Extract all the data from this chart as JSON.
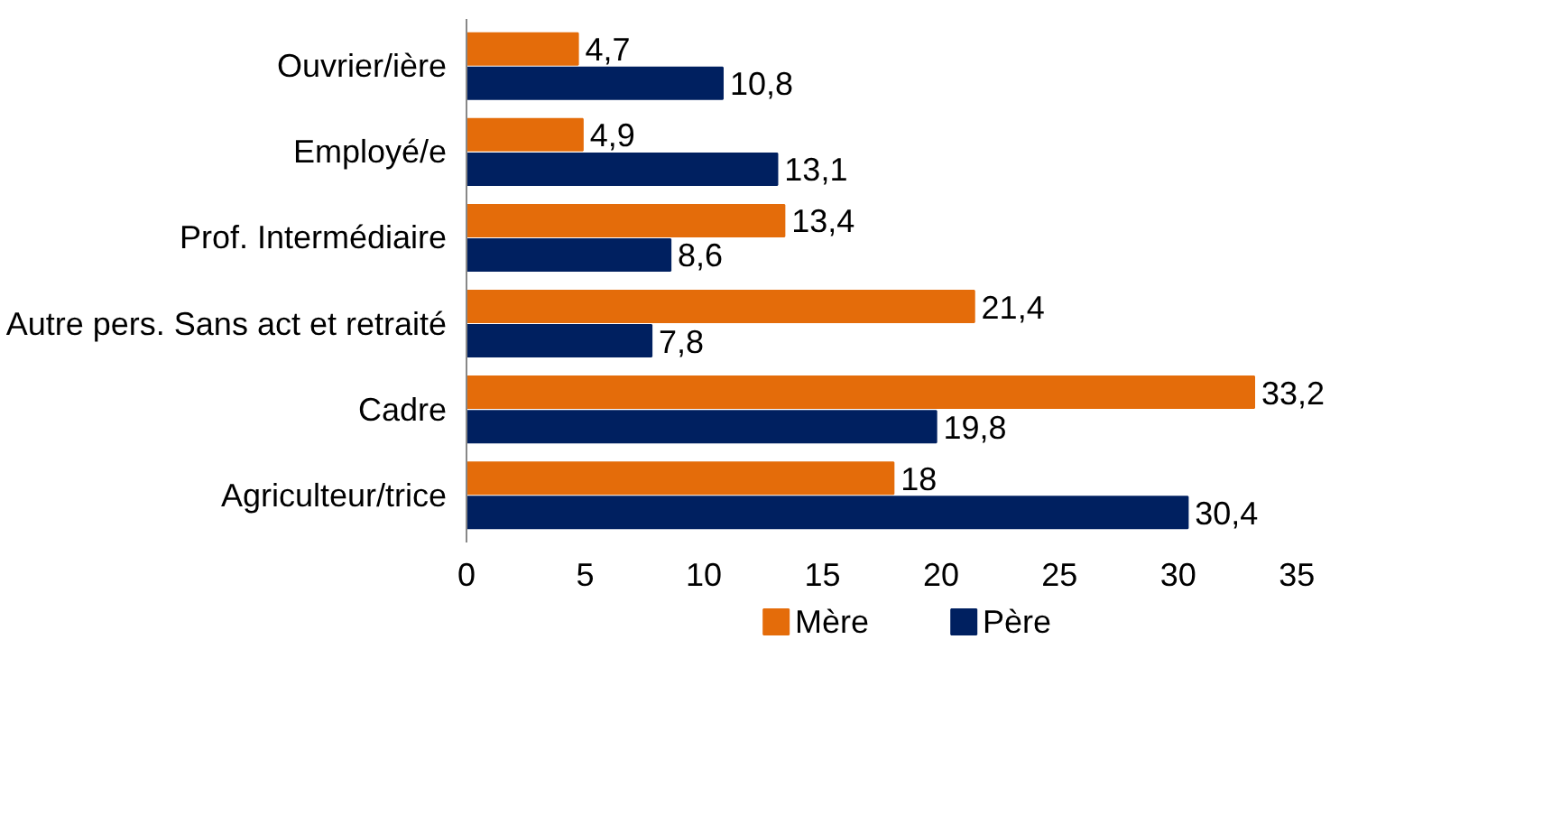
{
  "chart_data": {
    "type": "bar",
    "orientation": "horizontal",
    "categories": [
      "Ouvrier/ière",
      "Employé/e",
      "Prof. Intermédiaire",
      "Autre pers. Sans act et retraité",
      "Cadre",
      "Agriculteur/trice"
    ],
    "series": [
      {
        "name": "Mère",
        "color": "#e46c0a",
        "values": [
          4.7,
          4.9,
          13.4,
          21.4,
          33.2,
          18
        ],
        "value_labels": [
          "4,7",
          "4,9",
          "13,4",
          "21,4",
          "33,2",
          "18"
        ]
      },
      {
        "name": "Père",
        "color": "#002060",
        "values": [
          10.8,
          13.1,
          8.6,
          7.8,
          19.8,
          30.4
        ],
        "value_labels": [
          "10,8",
          "13,1",
          "8,6",
          "7,8",
          "19,8",
          "30,4"
        ]
      }
    ],
    "xlim": [
      0,
      35
    ],
    "xticks": [
      0,
      5,
      10,
      15,
      20,
      25,
      30,
      35
    ],
    "legend": "bottom"
  }
}
